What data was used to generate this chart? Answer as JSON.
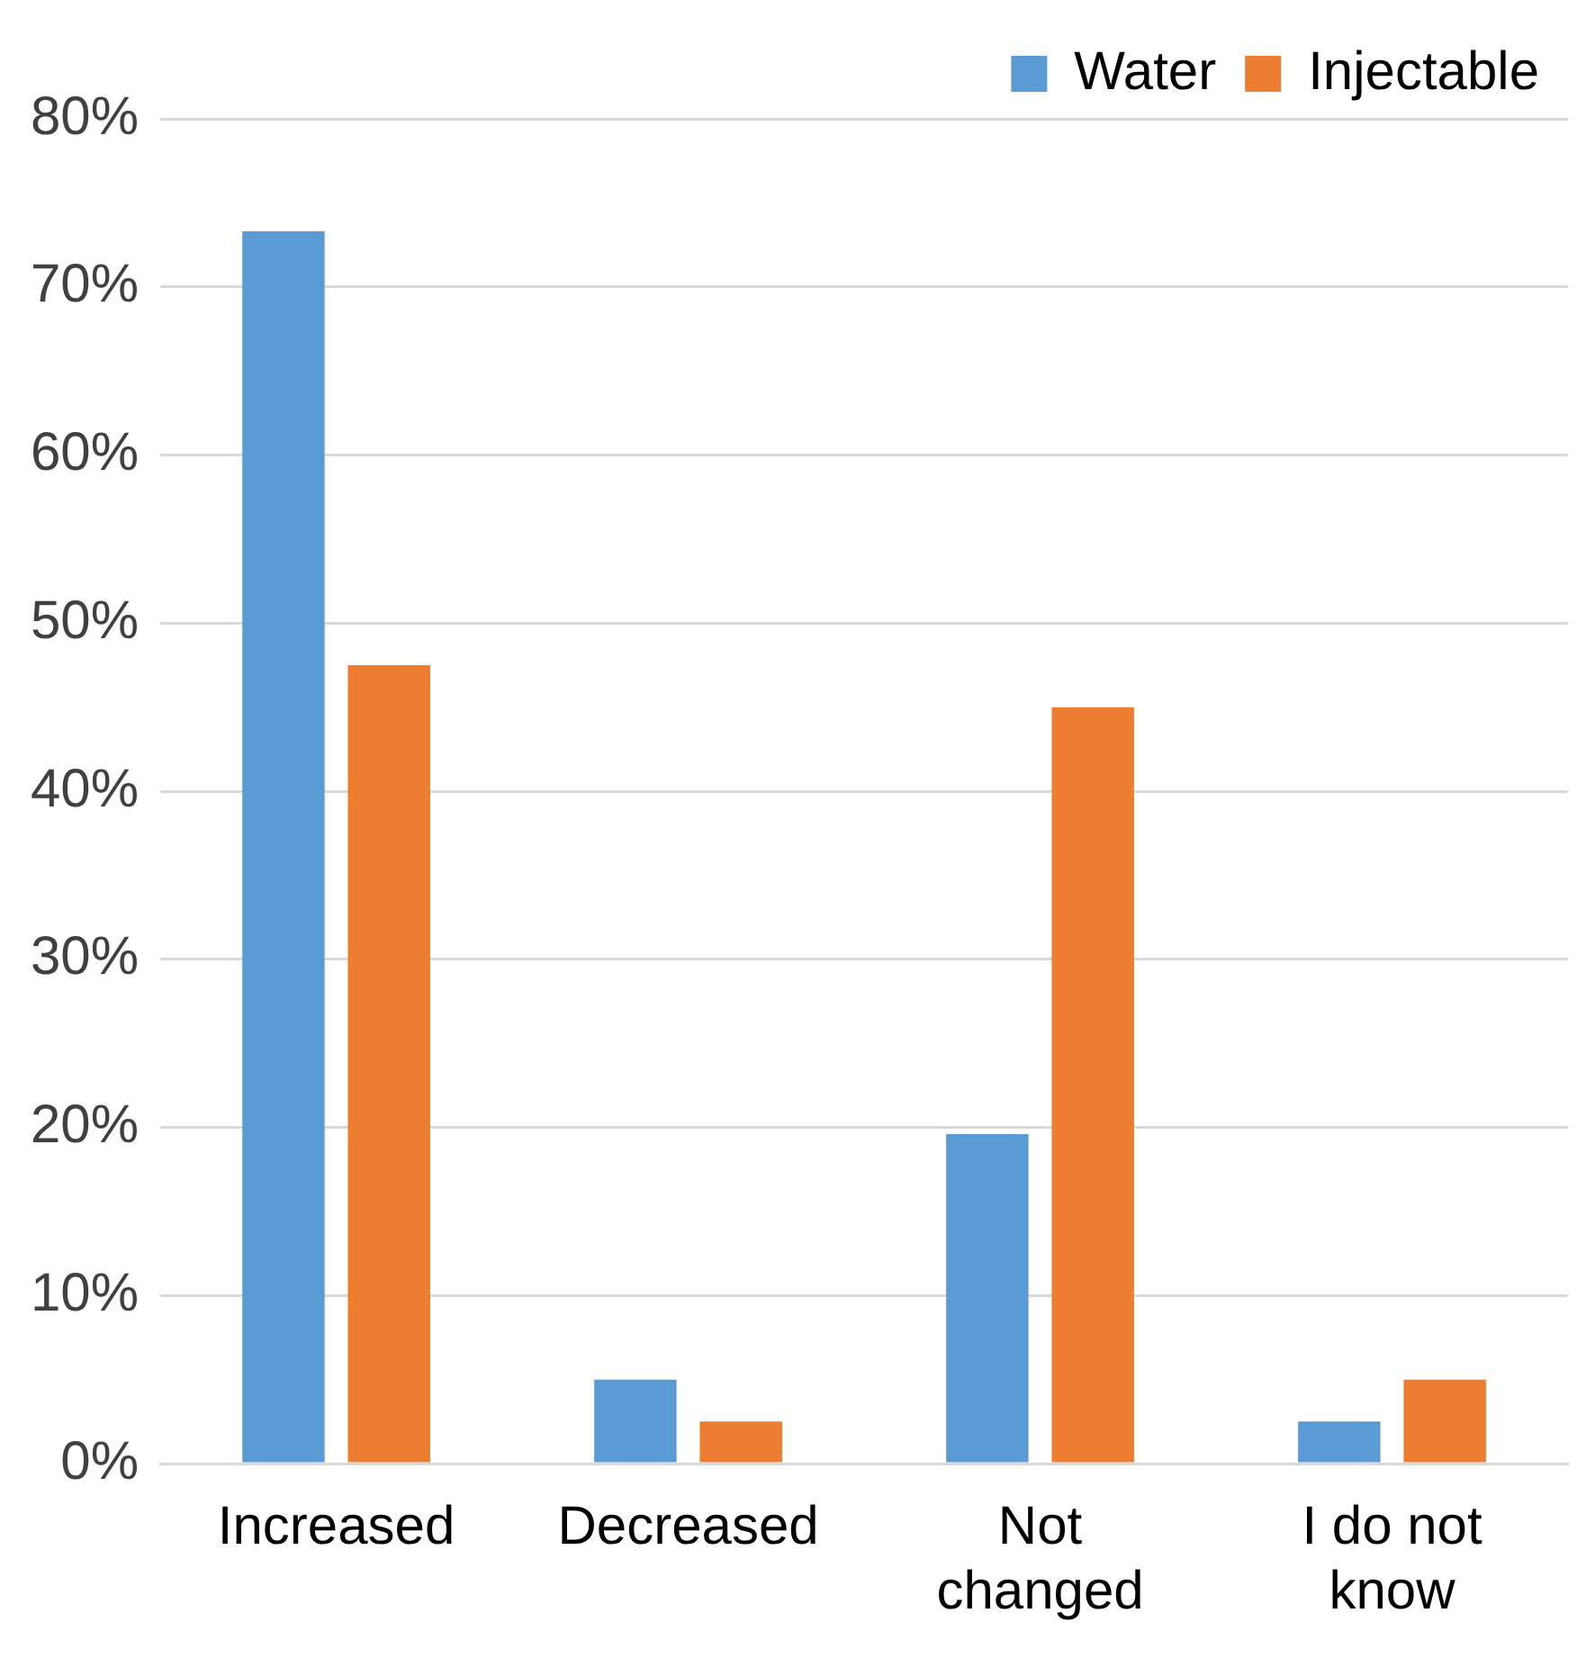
{
  "chart_data": {
    "type": "bar",
    "categories": [
      "Increased",
      "Decreased",
      "Not changed",
      "I do not know"
    ],
    "series": [
      {
        "name": "Water",
        "color": "#5b9bd5",
        "values": [
          73.3,
          5.0,
          19.6,
          2.5
        ]
      },
      {
        "name": "Injectable",
        "color": "#ed7d31",
        "values": [
          47.5,
          2.5,
          45.0,
          5.0
        ]
      }
    ],
    "ylim": [
      0,
      80
    ],
    "yticks": [
      {
        "value": 0,
        "label": "0%"
      },
      {
        "value": 10,
        "label": "10%"
      },
      {
        "value": 20,
        "label": "20%"
      },
      {
        "value": 30,
        "label": "30%"
      },
      {
        "value": 40,
        "label": "40%"
      },
      {
        "value": 50,
        "label": "50%"
      },
      {
        "value": 60,
        "label": "60%"
      },
      {
        "value": 70,
        "label": "70%"
      },
      {
        "value": 80,
        "label": "80%"
      }
    ],
    "grid": "y",
    "legend": "top right"
  }
}
